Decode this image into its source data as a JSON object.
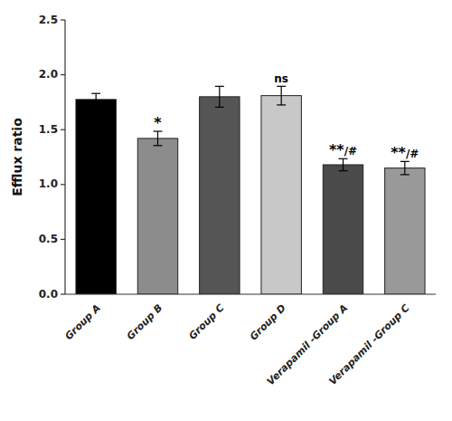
{
  "chart_data": {
    "type": "bar",
    "categories": [
      "Group A",
      "Group B",
      "Group C",
      "Group D",
      "Verapamil -Group A",
      "Verapamil -Group C"
    ],
    "values": [
      1.775,
      1.42,
      1.8,
      1.81,
      1.18,
      1.15
    ],
    "errors": [
      0.055,
      0.065,
      0.095,
      0.085,
      0.055,
      0.06
    ],
    "colors": [
      "#000000",
      "#8c8c8c",
      "#555555",
      "#c8c8c8",
      "#4a4a4a",
      "#999999"
    ],
    "ylabel": "Efflux ratio",
    "ylim": [
      0,
      2.5
    ],
    "yticks": [
      {
        "value": 0.0,
        "label": "0.0"
      },
      0.5,
      {
        "value": 1.0,
        "label": "1.0"
      },
      1.5,
      {
        "value": 2.0,
        "label": "2.0"
      },
      2.5
    ],
    "grid": false,
    "annotations": [
      {
        "text": "*",
        "category": "Group B"
      },
      {
        "text": "ns",
        "category": "Group D"
      },
      {
        "text": "**/#",
        "category": "Verapamil -Group A"
      },
      {
        "text": "**/#",
        "category": "Verapamil -Group C"
      }
    ]
  }
}
